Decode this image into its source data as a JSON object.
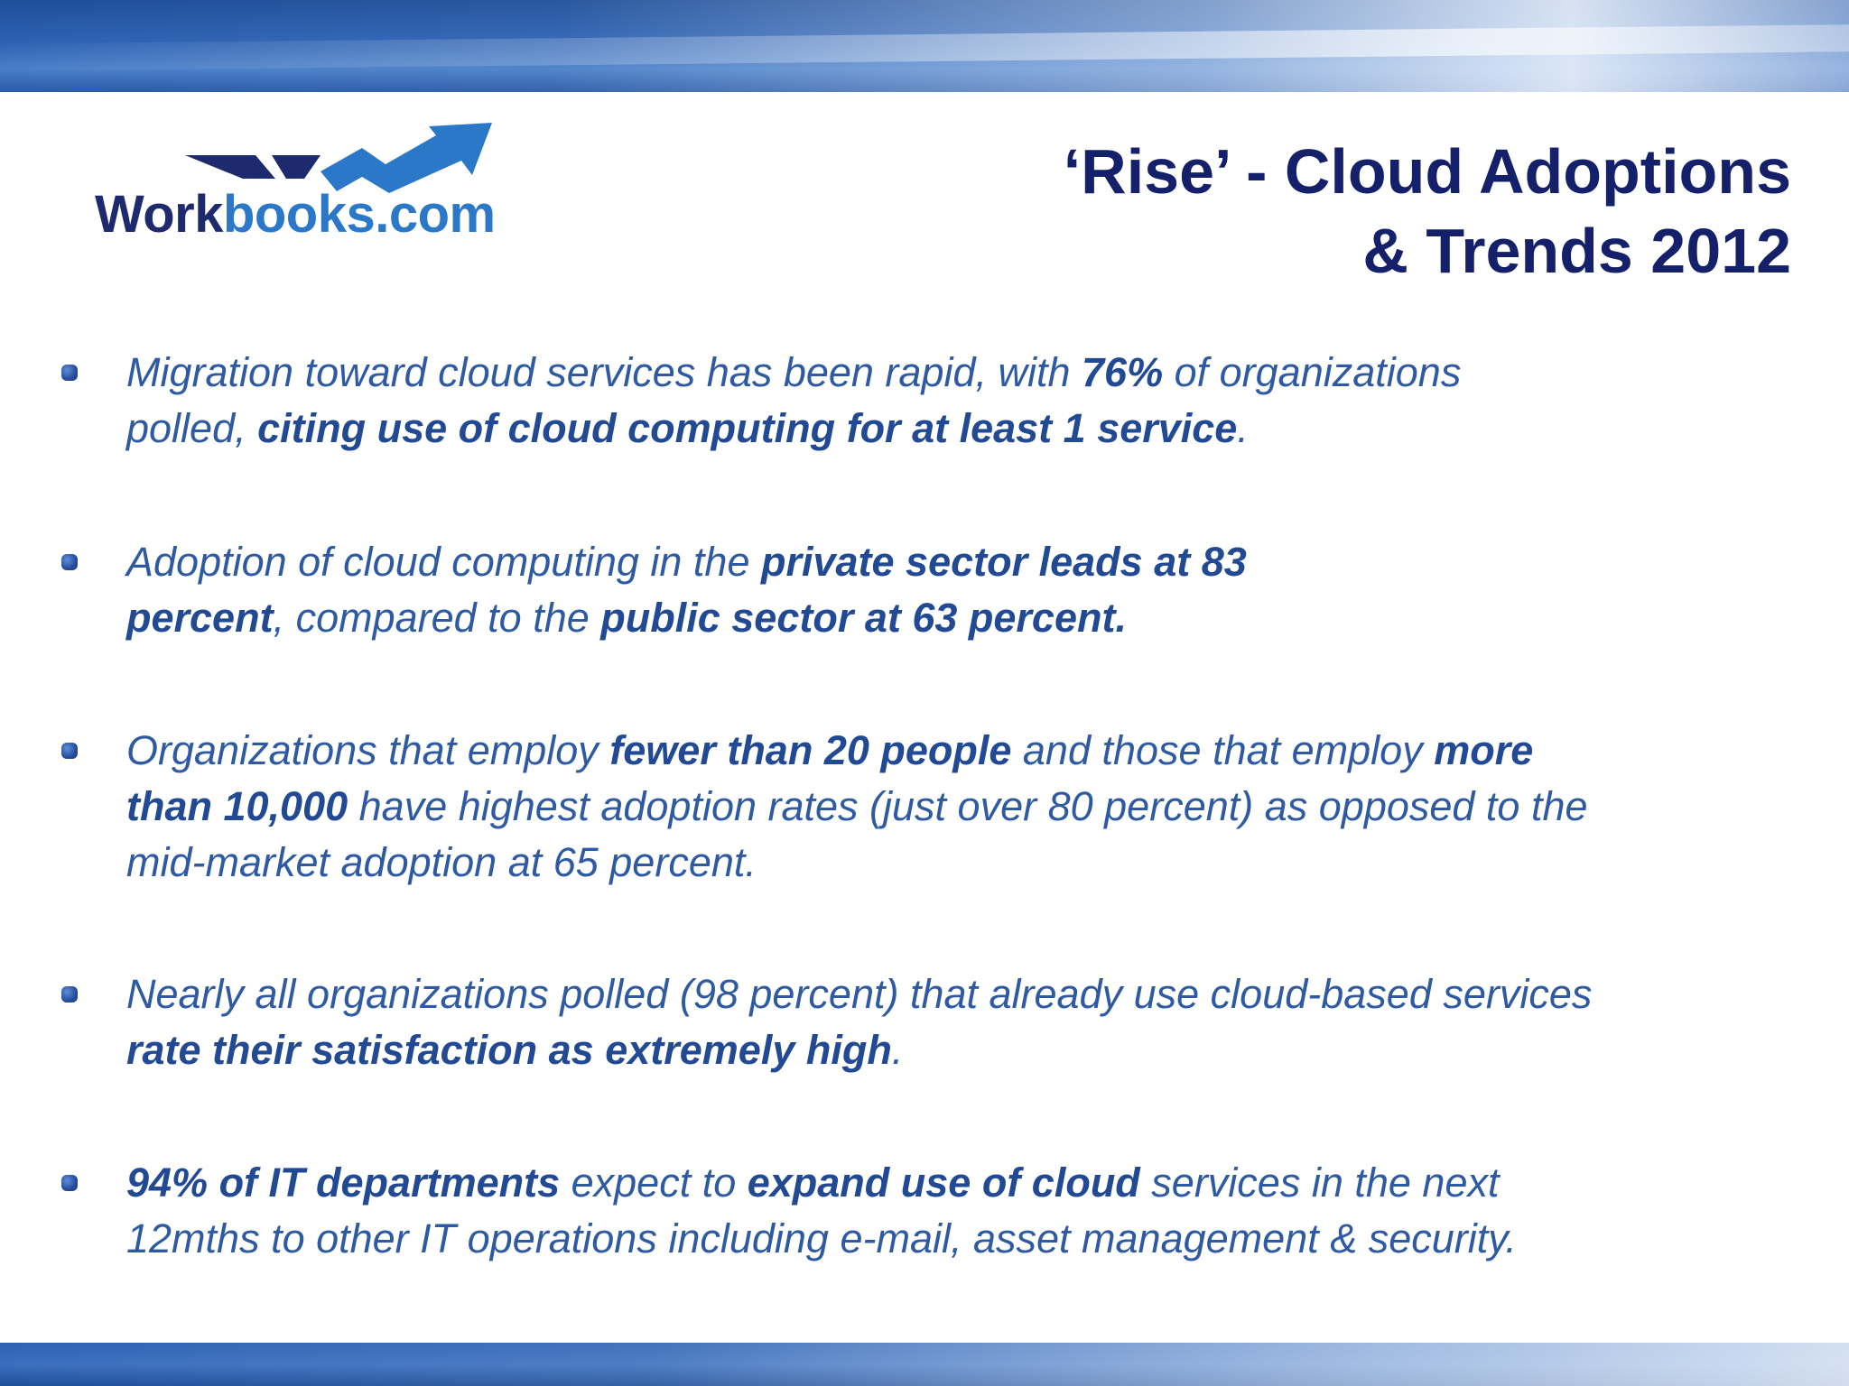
{
  "logo": {
    "text_dark": "Work",
    "text_light": "books.com"
  },
  "title": {
    "line1": "‘Rise’ - Cloud Adoptions",
    "line2": "& Trends 2012"
  },
  "bullets": [
    {
      "segments": [
        {
          "text": "Migration toward cloud services has been rapid, with ",
          "bold": false
        },
        {
          "text": "76%",
          "bold": true
        },
        {
          "text": " of organizations",
          "bold": false
        },
        {
          "br": true
        },
        {
          "text": "polled, ",
          "bold": false
        },
        {
          "text": "citing use of cloud computing for at least 1 service",
          "bold": true
        },
        {
          "text": ".",
          "bold": false
        }
      ]
    },
    {
      "segments": [
        {
          "text": "Adoption of cloud computing in the ",
          "bold": false
        },
        {
          "text": "private sector leads at 83",
          "bold": true
        },
        {
          "br": true
        },
        {
          "text": "percent",
          "bold": true
        },
        {
          "text": ", compared to the ",
          "bold": false
        },
        {
          "text": "public sector at 63 percent.",
          "bold": true
        }
      ]
    },
    {
      "segments": [
        {
          "text": "Organizations that employ ",
          "bold": false
        },
        {
          "text": "fewer than 20 people",
          "bold": true
        },
        {
          "text": " and those that employ ",
          "bold": false
        },
        {
          "text": "more",
          "bold": true
        },
        {
          "br": true
        },
        {
          "text": "than 10,000",
          "bold": true
        },
        {
          "text": " have highest adoption rates (just over 80 percent) as opposed to the",
          "bold": false
        },
        {
          "br": true
        },
        {
          "text": "mid-market adoption at 65 percent.",
          "bold": false
        }
      ]
    },
    {
      "segments": [
        {
          "text": "Nearly all organizations polled (98 percent) that already use cloud-based services",
          "bold": false
        },
        {
          "br": true
        },
        {
          "text": "rate their satisfaction as extremely high",
          "bold": true
        },
        {
          "text": ".",
          "bold": false
        }
      ]
    },
    {
      "segments": [
        {
          "text": "94% of IT departments",
          "bold": true
        },
        {
          "text": " expect to ",
          "bold": false
        },
        {
          "text": "expand use of cloud",
          "bold": true
        },
        {
          "text": " services in the next",
          "bold": false
        },
        {
          "br": true
        },
        {
          "text": "12mths to other IT operations including e-mail, asset management & security.",
          "bold": false
        }
      ]
    }
  ],
  "colors": {
    "title": "#15206a",
    "body": "#2e5aa3",
    "logo_dark": "#1d2a6e",
    "logo_light": "#2b78c9"
  }
}
